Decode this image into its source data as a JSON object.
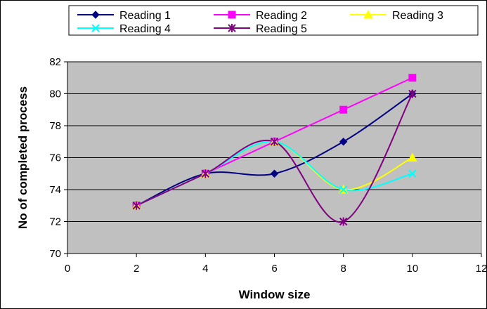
{
  "chart_data": {
    "type": "line",
    "title": "",
    "xlabel": "Window size",
    "ylabel": "No of completed process",
    "xlim": [
      0,
      12
    ],
    "ylim": [
      70,
      82
    ],
    "x_ticks": [
      0,
      2,
      4,
      6,
      8,
      10,
      12
    ],
    "y_ticks": [
      70,
      72,
      74,
      76,
      78,
      80,
      82
    ],
    "grid": "horizontal",
    "legend_position": "top",
    "smooth": true,
    "x": [
      2,
      4,
      6,
      8,
      10
    ],
    "series": [
      {
        "name": "Reading 1",
        "values": [
          73,
          75,
          75,
          77,
          80
        ],
        "color": "#000080",
        "marker": "diamond"
      },
      {
        "name": "Reading 2",
        "values": [
          73,
          75,
          77,
          79,
          81
        ],
        "color": "#ff00ff",
        "marker": "square"
      },
      {
        "name": "Reading 3",
        "values": [
          73,
          75,
          77,
          74,
          76
        ],
        "color": "#ffff00",
        "marker": "triangle"
      },
      {
        "name": "Reading 4",
        "values": [
          73,
          75,
          77,
          74,
          75
        ],
        "color": "#00ffff",
        "marker": "x"
      },
      {
        "name": "Reading 5",
        "values": [
          73,
          75,
          77,
          72,
          80
        ],
        "color": "#800080",
        "marker": "star"
      }
    ]
  }
}
